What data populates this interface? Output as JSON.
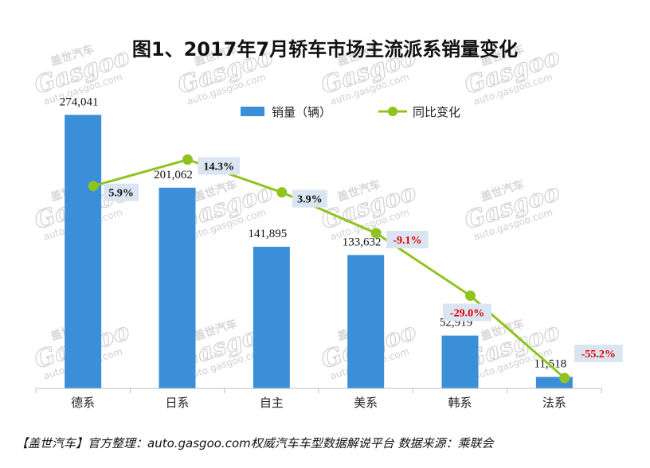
{
  "title": "图1、2017年7月轿车市场主流派系销量变化",
  "footer": "【盖世汽车】官方整理：auto.gasgoo.com权威汽车车型数据解说平台 数据来源：乘联会",
  "watermark": {
    "brand": "盖世汽车",
    "logo": "Gasgoo",
    "url": "auto.gasgoo.com"
  },
  "colors": {
    "bar": "#3b8fd9",
    "line": "#8fc31f",
    "box": "#dbe5f1",
    "positive": "#111111",
    "negative": "#e00000"
  },
  "chart_data": {
    "type": "bar",
    "categories": [
      "德系",
      "日系",
      "自主",
      "美系",
      "韩系",
      "法系"
    ],
    "series": [
      {
        "name": "销量（辆）",
        "type": "bar",
        "values": [
          274041,
          201062,
          141895,
          133632,
          52919,
          11518
        ],
        "labels": [
          "274,041",
          "201,062",
          "141,895",
          "133,632",
          "52,919",
          "11,518"
        ]
      },
      {
        "name": "同比变化",
        "type": "line",
        "values": [
          5.9,
          14.3,
          3.9,
          -9.1,
          -29.0,
          -55.2
        ],
        "labels": [
          "5.9%",
          "14.3%",
          "3.9%",
          "-9.1%",
          "-29.0%",
          "-55.2%"
        ]
      }
    ],
    "legend": "top",
    "grid": false
  }
}
